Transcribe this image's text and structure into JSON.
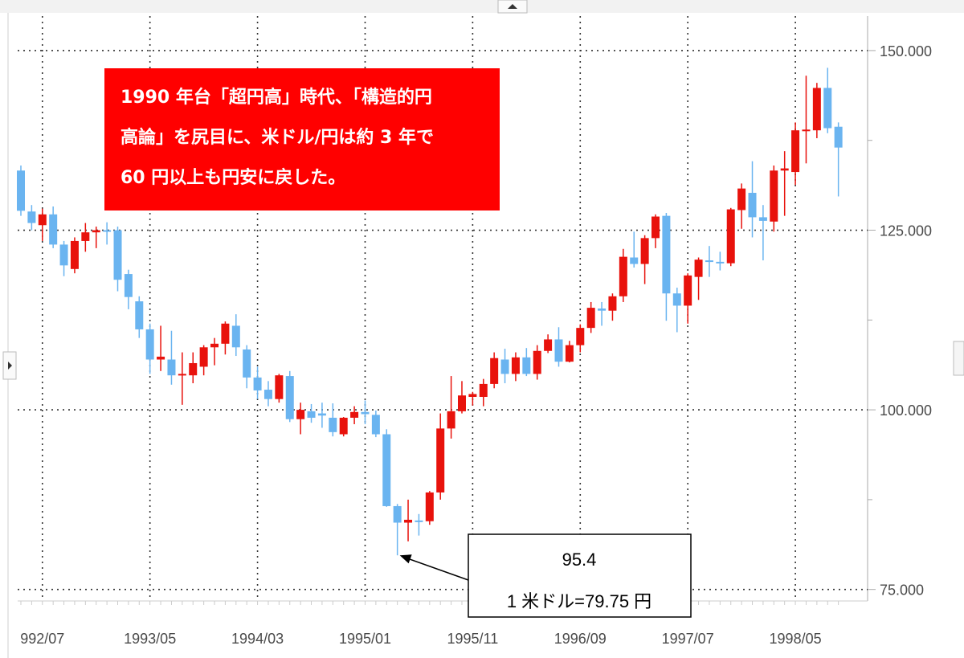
{
  "chart_data": {
    "type": "candlestick",
    "categories": [
      null,
      null,
      "992/07",
      null,
      null,
      null,
      null,
      null,
      null,
      null,
      null,
      null,
      "1993/05",
      null,
      null,
      null,
      null,
      null,
      null,
      null,
      null,
      null,
      "1994/03",
      null,
      null,
      null,
      null,
      null,
      null,
      null,
      null,
      null,
      "1995/01",
      null,
      null,
      null,
      null,
      null,
      null,
      null,
      null,
      null,
      "1995/11",
      null,
      null,
      null,
      null,
      null,
      null,
      null,
      null,
      null,
      "1996/09",
      null,
      null,
      null,
      null,
      null,
      null,
      null,
      null,
      null,
      "1997/07",
      null,
      null,
      null,
      null,
      null,
      null,
      null,
      null,
      null,
      "1998/05",
      null,
      null,
      null,
      null
    ],
    "open": [
      133.3,
      127.6,
      125.7,
      127.2,
      123.0,
      119.6,
      123.5,
      124.7,
      125.0,
      125.0,
      118.9,
      115.1,
      111.2,
      107.0,
      107.0,
      104.8,
      104.8,
      106.0,
      108.7,
      109.2,
      111.7,
      108.4,
      104.5,
      102.8,
      101.5,
      104.7,
      98.7,
      99.8,
      99.5,
      98.9,
      96.6,
      98.9,
      99.7,
      99.3,
      96.6,
      86.6,
      84.3,
      84.6,
      84.5,
      88.5,
      97.4,
      99.8,
      101.8,
      101.8,
      103.6,
      107.0,
      105.0,
      107.3,
      105.0,
      108.2,
      109.8,
      106.7,
      109.0,
      111.4,
      114.1,
      113.8,
      115.8,
      121.2,
      120.3,
      123.9,
      127.0,
      116.2,
      114.5,
      118.5,
      120.8,
      120.6,
      120.4,
      127.8,
      130.2,
      126.8,
      126.2,
      133.3,
      133.1,
      138.8,
      138.9,
      144.8,
      139.4
    ],
    "high": [
      134.0,
      128.5,
      128.0,
      128.3,
      123.5,
      124.0,
      126.0,
      125.5,
      126.1,
      125.5,
      119.5,
      115.8,
      112.0,
      111.7,
      111.0,
      108.0,
      108.0,
      109.0,
      110.0,
      112.3,
      113.3,
      109.0,
      106.0,
      104.0,
      105.0,
      105.4,
      101.0,
      100.8,
      101.0,
      100.9,
      99.0,
      100.5,
      101.3,
      99.9,
      97.3,
      86.9,
      87.5,
      85.5,
      88.7,
      99.5,
      104.7,
      104.0,
      102.5,
      104.3,
      108.0,
      108.5,
      108.0,
      108.6,
      109.0,
      110.5,
      111.5,
      109.6,
      111.9,
      115.0,
      115.0,
      116.2,
      122.4,
      124.8,
      124.3,
      127.2,
      127.4,
      117.0,
      119.0,
      121.2,
      122.8,
      122.0,
      128.1,
      131.5,
      134.6,
      128.5,
      134.0,
      136.0,
      140.0,
      146.5,
      145.5,
      147.6,
      140.0
    ],
    "low": [
      127.0,
      125.0,
      123.5,
      122.5,
      118.6,
      119.0,
      122.0,
      122.5,
      123.0,
      116.5,
      114.0,
      110.0,
      105.0,
      105.4,
      103.5,
      100.7,
      103.7,
      104.8,
      106.2,
      107.7,
      107.5,
      103.0,
      101.5,
      100.5,
      101.0,
      98.3,
      96.6,
      98.2,
      97.5,
      96.3,
      96.3,
      98.0,
      98.0,
      96.2,
      86.5,
      79.75,
      81.7,
      82.5,
      84.0,
      87.5,
      96.0,
      99.5,
      100.6,
      100.5,
      103.0,
      103.7,
      104.0,
      104.7,
      104.2,
      107.9,
      106.0,
      106.6,
      108.0,
      110.7,
      111.7,
      112.4,
      115.0,
      119.8,
      117.5,
      122.5,
      112.4,
      110.8,
      112.0,
      115.3,
      118.5,
      119.4,
      120.0,
      125.2,
      124.0,
      120.8,
      124.8,
      127.0,
      131.3,
      134.3,
      137.8,
      138.5,
      129.7
    ],
    "close": [
      127.7,
      126.0,
      127.2,
      123.0,
      120.1,
      123.5,
      124.7,
      125.0,
      124.8,
      118.1,
      115.7,
      111.2,
      107.0,
      107.4,
      104.8,
      105.0,
      106.5,
      108.7,
      109.2,
      112.0,
      108.7,
      104.5,
      102.7,
      101.5,
      104.8,
      98.7,
      100.0,
      98.9,
      99.2,
      96.9,
      98.9,
      99.7,
      99.4,
      96.6,
      86.6,
      84.3,
      84.7,
      84.4,
      88.5,
      97.4,
      99.8,
      102.0,
      102.2,
      103.6,
      107.2,
      105.0,
      107.3,
      105.0,
      108.2,
      109.8,
      106.7,
      109.0,
      111.4,
      114.2,
      113.8,
      115.8,
      121.3,
      120.3,
      123.9,
      126.9,
      116.2,
      114.5,
      118.7,
      120.9,
      120.6,
      120.4,
      127.9,
      130.8,
      126.8,
      126.3,
      133.3,
      133.6,
      138.9,
      139.0,
      144.8,
      139.2,
      136.5
    ],
    "up_color": "#e8120c",
    "down_color": "#6ab4f0",
    "ylim": [
      73.4,
      154.8
    ],
    "yticks": [
      {
        "value": 75,
        "label": "75.000"
      },
      {
        "value": 100,
        "label": "100.000"
      },
      {
        "value": 125,
        "label": "125.000"
      },
      {
        "value": 150,
        "label": "150.000"
      }
    ],
    "yminor_ticks": [
      87.5,
      112.5,
      137.5
    ],
    "grid": true,
    "annotations": [
      {
        "lines": [
          "1990 年台「超円高」時代、「構造的円",
          "高論」を尻目に、米ドル/円は約 3 年で",
          "60 円以上も円安に戻した。"
        ],
        "color": "#ff0000"
      },
      {
        "lines": [
          "95.4",
          "1 米ドル=79.75 円"
        ]
      }
    ]
  }
}
